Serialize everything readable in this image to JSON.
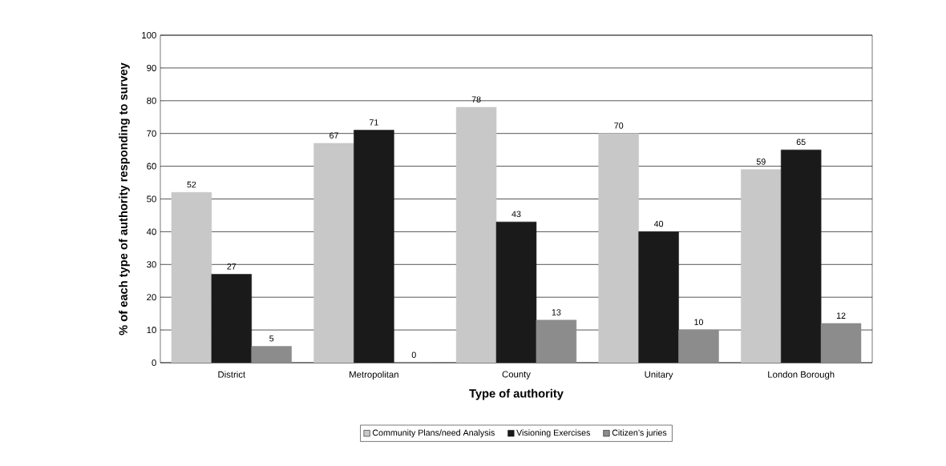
{
  "chart_data": {
    "type": "bar",
    "xlabel": "Type of authority",
    "ylabel": "% of each type of authority responding to survey",
    "categories": [
      "District",
      "Metropolitan",
      "County",
      "Unitary",
      "London Borough"
    ],
    "series": [
      {
        "name": "Community Plans/need Analysis",
        "color": "#c8c8c8",
        "values": [
          52,
          67,
          78,
          70,
          59
        ]
      },
      {
        "name": "Visioning Exercises",
        "color": "#1a1a1a",
        "values": [
          27,
          71,
          43,
          40,
          65
        ]
      },
      {
        "name": "Citizen’s juries",
        "color": "#8c8c8c",
        "values": [
          5,
          0,
          13,
          10,
          12
        ]
      }
    ],
    "ylim": [
      0,
      100
    ],
    "yticks": [
      0,
      10,
      20,
      30,
      40,
      50,
      60,
      70,
      80,
      90,
      100
    ],
    "grid": "y",
    "legend": "bottom",
    "data_labels": true
  }
}
